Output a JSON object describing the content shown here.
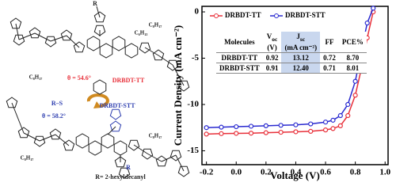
{
  "chart_data": {
    "type": "line",
    "xlabel": "Voltage (V)",
    "ylabel": "Current Density (mA cm⁻²)",
    "x": [
      -0.2,
      -0.1,
      0,
      0.1,
      0.2,
      0.3,
      0.4,
      0.5,
      0.6,
      0.65,
      0.7,
      0.75,
      0.8,
      0.85,
      0.88,
      0.92
    ],
    "series": [
      {
        "name": "DRBDT-TT",
        "color": "#e8303a",
        "marker": "circle",
        "values": [
          -13.2,
          -13.15,
          -13.12,
          -13.1,
          -13.05,
          -13.0,
          -12.95,
          -12.9,
          -12.75,
          -12.6,
          -12.3,
          -11.2,
          -9.0,
          -5.5,
          -2.8,
          0
        ]
      },
      {
        "name": "DRBDT-STT",
        "color": "#2a2ad0",
        "marker": "circle",
        "values": [
          -12.5,
          -12.45,
          -12.4,
          -12.35,
          -12.3,
          -12.25,
          -12.2,
          -12.1,
          -11.9,
          -11.7,
          -11.2,
          -10.0,
          -7.5,
          -3.5,
          -1.2,
          0.4
        ]
      }
    ],
    "xlim": [
      -0.23,
      1.02
    ],
    "ylim": [
      -16.5,
      0.6
    ],
    "xticks": [
      -0.2,
      {
        "value": 0,
        "label": "0.0"
      },
      0.2,
      0.4,
      0.6,
      0.8,
      {
        "value": 1,
        "label": "1.0"
      }
    ],
    "yticks": [
      0,
      -5,
      -10,
      -15
    ],
    "legend": "top-left"
  },
  "inset_table": {
    "headers": [
      "Molecules",
      {
        "symbol": "V",
        "subscript": "oc",
        "unit": "(V)"
      },
      {
        "symbol": "J",
        "subscript": "sc",
        "unit": "(mA cm⁻²)"
      },
      "FF",
      "PCE%"
    ],
    "rows": [
      [
        "DRBDT-TT",
        "0.92",
        "13.12",
        "0.72",
        "8.70"
      ],
      [
        "DRBDT-STT",
        "0.91",
        "12.40",
        "0.71",
        "8.01"
      ]
    ]
  },
  "diagram": {
    "labels": [
      "R",
      "C₆H₁₃",
      "C₈H₁₇",
      "C₈H₁₇",
      "θ = 54.6°",
      "DRBDT-TT",
      "R–S",
      "θ = 58.2°",
      "DRBDT-STT",
      "C₈H₁₇",
      "C₈H₁₇",
      "R= 2-hexyldecanyl",
      "R"
    ]
  }
}
